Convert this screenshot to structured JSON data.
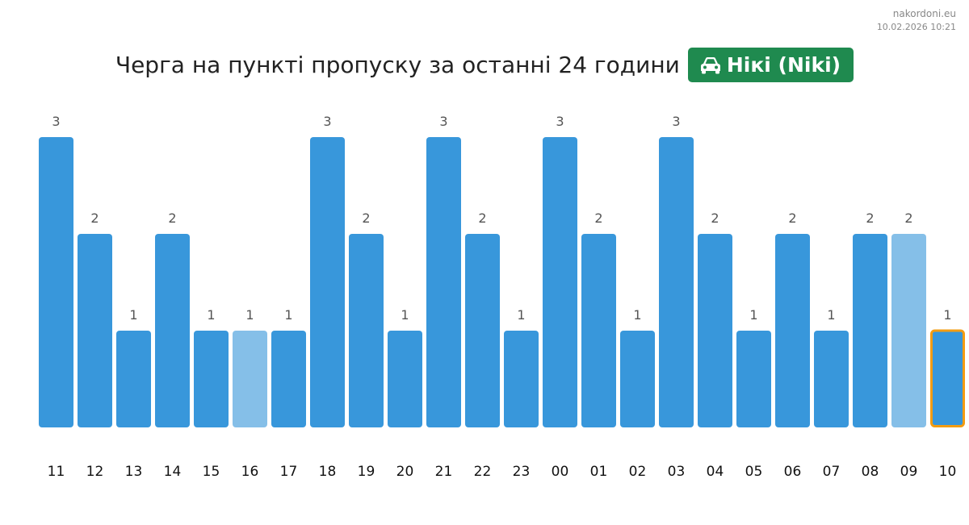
{
  "header": {
    "site": "nakordoni.eu",
    "timestamp": "10.02.2026 10:21",
    "title": "Черга на пункті пропуску за останні 24 години",
    "badge_label": "Нікі (Niki)",
    "badge_icon": "car-icon",
    "badge_color": "#1f8a4f"
  },
  "chart_data": {
    "type": "bar",
    "categories": [
      "11",
      "12",
      "13",
      "14",
      "15",
      "16",
      "17",
      "18",
      "19",
      "20",
      "21",
      "22",
      "23",
      "00",
      "01",
      "02",
      "03",
      "04",
      "05",
      "06",
      "07",
      "08",
      "09",
      "10"
    ],
    "values": [
      3,
      2,
      1,
      2,
      1,
      1,
      1,
      3,
      2,
      1,
      3,
      2,
      1,
      3,
      2,
      1,
      3,
      2,
      1,
      2,
      1,
      2,
      2,
      1
    ],
    "ylim": [
      0,
      3
    ],
    "colors": {
      "bar": "#3897db",
      "bar_light": "#85bfe8",
      "highlight_border": "#f39c12"
    },
    "light_bars": [
      "16",
      "09"
    ],
    "highlighted_bar": "10",
    "grid": false
  }
}
